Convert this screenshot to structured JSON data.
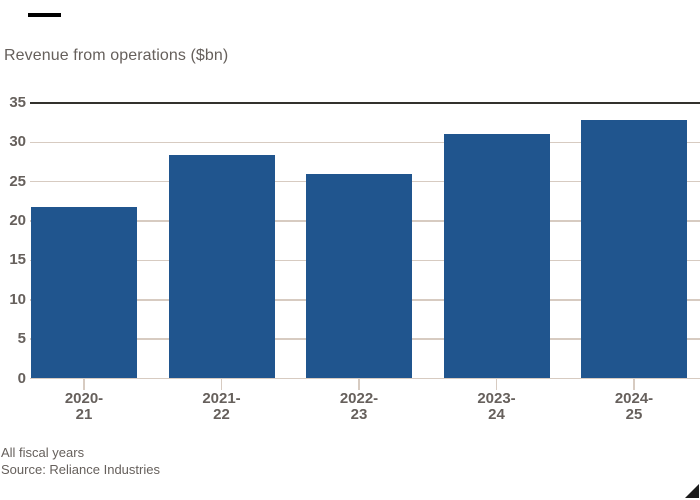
{
  "chart_data": {
    "type": "bar",
    "title": "Revenue from operations ($bn)",
    "categories": [
      "2020-21",
      "2021-22",
      "2022-23",
      "2023-24",
      "2024-25"
    ],
    "values": [
      21.8,
      28.4,
      26.0,
      31.0,
      32.9
    ],
    "xlabel": "",
    "ylabel": "Revenue from operations ($bn)",
    "ylim": [
      0,
      35
    ],
    "ytick_step": 5,
    "ytick_labels": [
      "35",
      "30",
      "25",
      "20",
      "15",
      "10",
      "5",
      "0"
    ],
    "grid": "horizontal, behind bars, top line emphasized dark",
    "legend": "none",
    "note": "All fiscal years",
    "source": "Source: Reliance Industries"
  },
  "icons": {
    "top_rule": "ft-black-dash",
    "corner_triangle": "black-corner-triangle"
  },
  "colors": {
    "background": "#FFFFFF",
    "bar": "#20558E",
    "grid": "#D7CBC1",
    "grid_top": "#33312D",
    "text": "#66605C",
    "rule": "#000000",
    "triangle": "#1A1A1A"
  }
}
